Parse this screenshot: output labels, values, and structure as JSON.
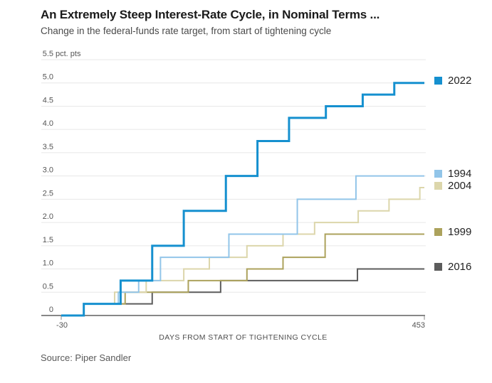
{
  "header": {
    "title": "An Extremely Steep Interest-Rate Cycle, in Nominal Terms ...",
    "subtitle": "Change in the federal-funds rate target, from start of tightening cycle"
  },
  "footer": {
    "source": "Source: Piper Sandler"
  },
  "chart_data": {
    "type": "line",
    "step": true,
    "title": "An Extremely Steep Interest-Rate Cycle, in Nominal Terms ...",
    "subtitle": "Change in the federal-funds rate target, from start of tightening cycle",
    "xlabel": "DAYS FROM START OF TIGHTENING CYCLE",
    "ylabel": "",
    "y_unit_label": "pct. pts",
    "xlim": [
      -30,
      453
    ],
    "ylim": [
      0,
      5.5
    ],
    "x_ticks": [
      -30,
      453
    ],
    "x_tick_labels": [
      "-30",
      "453"
    ],
    "y_ticks": [
      0,
      0.5,
      1,
      1.5,
      2,
      2.5,
      3,
      3.5,
      4,
      4.5,
      5,
      5.5
    ],
    "y_tick_labels": [
      "0",
      "0.5",
      "1.0",
      "1.5",
      "2.0",
      "2.5",
      "3.0",
      "3.5",
      "4.0",
      "4.5",
      "5.0",
      "5.5"
    ],
    "grid": "horizontal",
    "legend_position": "right",
    "colors": {
      "grid": "#e7e7e7",
      "axis": "#878787",
      "tick_text": "#555555"
    },
    "series": [
      {
        "name": "2016",
        "color": "#5c5c5c",
        "line_width": 2,
        "points": [
          [
            -30,
            0
          ],
          [
            0,
            0.25
          ],
          [
            91,
            0.5
          ],
          [
            182,
            0.75
          ],
          [
            364,
            1.0
          ],
          [
            453,
            1.0
          ]
        ]
      },
      {
        "name": "1999",
        "color": "#aca25c",
        "line_width": 2,
        "points": [
          [
            -30,
            0
          ],
          [
            0,
            0.25
          ],
          [
            55,
            0.5
          ],
          [
            139,
            0.75
          ],
          [
            217,
            1.0
          ],
          [
            265,
            1.25
          ],
          [
            321,
            1.75
          ],
          [
            453,
            1.75
          ]
        ]
      },
      {
        "name": "2004",
        "color": "#dcd6ab",
        "line_width": 2,
        "points": [
          [
            -30,
            0
          ],
          [
            0,
            0.25
          ],
          [
            41,
            0.5
          ],
          [
            83,
            0.75
          ],
          [
            133,
            1.0
          ],
          [
            167,
            1.25
          ],
          [
            217,
            1.5
          ],
          [
            265,
            1.75
          ],
          [
            307,
            2.0
          ],
          [
            365,
            2.25
          ],
          [
            406,
            2.5
          ],
          [
            447,
            2.75
          ],
          [
            453,
            2.75
          ]
        ]
      },
      {
        "name": "1994",
        "color": "#92c5e9",
        "line_width": 2,
        "points": [
          [
            -30,
            0
          ],
          [
            0,
            0.25
          ],
          [
            46,
            0.5
          ],
          [
            73,
            0.75
          ],
          [
            102,
            1.25
          ],
          [
            193,
            1.75
          ],
          [
            284,
            2.5
          ],
          [
            362,
            3.0
          ],
          [
            453,
            3.0
          ]
        ]
      },
      {
        "name": "2022",
        "color": "#1590cf",
        "line_width": 3,
        "points": [
          [
            -30,
            0
          ],
          [
            0,
            0.25
          ],
          [
            49,
            0.75
          ],
          [
            91,
            1.5
          ],
          [
            133,
            2.25
          ],
          [
            189,
            3.0
          ],
          [
            231,
            3.75
          ],
          [
            273,
            4.25
          ],
          [
            322,
            4.5
          ],
          [
            371,
            4.75
          ],
          [
            413,
            5.0
          ],
          [
            453,
            5.0
          ]
        ]
      }
    ],
    "legend_order": [
      "2022",
      "1994",
      "2004",
      "1999",
      "2016"
    ]
  }
}
